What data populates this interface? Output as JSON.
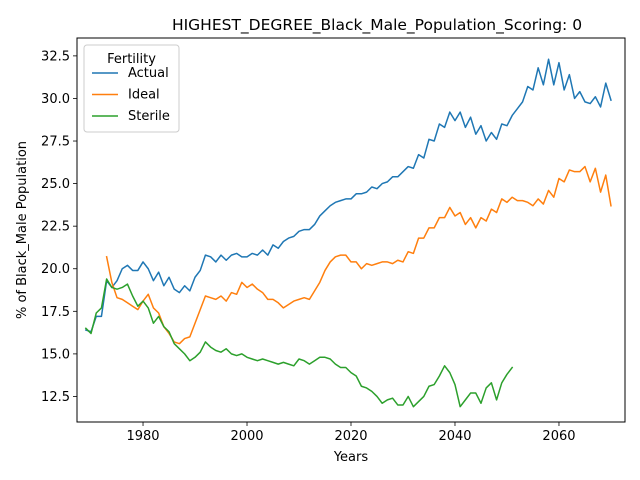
{
  "chart_data": {
    "type": "line",
    "title": "HIGHEST_DEGREE_Black_Male_Population_Scoring: 0",
    "xlabel": "Years",
    "ylabel": "% of Black_Male Population",
    "xlim": [
      1967.3,
      2072.7
    ],
    "ylim": [
      11.0,
      33.55
    ],
    "xticks": [
      1980,
      2000,
      2020,
      2040,
      2060
    ],
    "yticks": [
      12.5,
      15.0,
      17.5,
      20.0,
      22.5,
      25.0,
      27.5,
      30.0,
      32.5
    ],
    "xtick_labels": [
      "1980",
      "2000",
      "2020",
      "2040",
      "2060"
    ],
    "ytick_labels": [
      "12.5",
      "15.0",
      "17.5",
      "20.0",
      "22.5",
      "25.0",
      "27.5",
      "30.0",
      "32.5"
    ],
    "grid": false,
    "legend": {
      "title": "Fertility",
      "placement": "top-left"
    },
    "series": [
      {
        "name": "Actual",
        "color": "#1f77b4",
        "x": [
          1969,
          1970,
          1971,
          1972,
          1973,
          1974,
          1975,
          1976,
          1977,
          1978,
          1979,
          1980,
          1981,
          1982,
          1983,
          1984,
          1985,
          1986,
          1987,
          1988,
          1989,
          1990,
          1991,
          1992,
          1993,
          1994,
          1995,
          1996,
          1997,
          1998,
          1999,
          2000,
          2001,
          2002,
          2003,
          2004,
          2005,
          2006,
          2007,
          2008,
          2009,
          2010,
          2011,
          2012,
          2013,
          2014,
          2015,
          2016,
          2017,
          2018,
          2019,
          2020,
          2021,
          2022,
          2023,
          2024,
          2025,
          2026,
          2027,
          2028,
          2029,
          2030,
          2031,
          2032,
          2033,
          2034,
          2035,
          2036,
          2037,
          2038,
          2039,
          2040,
          2041,
          2042,
          2043,
          2044,
          2045,
          2046,
          2047,
          2048,
          2049,
          2050,
          2051,
          2052,
          2053,
          2054,
          2055,
          2056,
          2057,
          2058,
          2059,
          2060,
          2061,
          2062,
          2063,
          2064,
          2065,
          2066,
          2067,
          2068,
          2069,
          2070
        ],
        "y": [
          16.4,
          16.3,
          17.2,
          17.2,
          19.3,
          18.9,
          19.3,
          20.0,
          20.2,
          19.9,
          19.9,
          20.4,
          20.0,
          19.3,
          19.8,
          19.0,
          19.5,
          18.8,
          18.6,
          19.0,
          18.7,
          19.5,
          19.9,
          20.8,
          20.7,
          20.4,
          20.8,
          20.5,
          20.8,
          20.9,
          20.7,
          20.7,
          20.9,
          20.8,
          21.1,
          20.8,
          21.4,
          21.2,
          21.6,
          21.8,
          21.9,
          22.2,
          22.3,
          22.3,
          22.6,
          23.1,
          23.4,
          23.7,
          23.9,
          24.0,
          24.1,
          24.1,
          24.4,
          24.4,
          24.5,
          24.8,
          24.7,
          25.0,
          25.1,
          25.4,
          25.4,
          25.7,
          26.0,
          25.9,
          26.7,
          26.5,
          27.6,
          27.5,
          28.5,
          28.3,
          29.2,
          28.7,
          29.2,
          28.3,
          28.9,
          27.9,
          28.4,
          27.5,
          28.0,
          27.6,
          28.5,
          28.4,
          29.0,
          29.4,
          29.8,
          30.7,
          30.5,
          31.8,
          30.8,
          32.3,
          30.8,
          32.1,
          30.5,
          31.4,
          30.0,
          30.4,
          29.8,
          29.7,
          30.1,
          29.5,
          30.9,
          29.9
        ]
      },
      {
        "name": "Ideal",
        "color": "#ff7f0e",
        "x": [
          1973,
          1974,
          1975,
          1976,
          1977,
          1978,
          1979,
          1980,
          1981,
          1982,
          1983,
          1984,
          1985,
          1986,
          1987,
          1988,
          1989,
          1990,
          1991,
          1992,
          1993,
          1994,
          1995,
          1996,
          1997,
          1998,
          1999,
          2000,
          2001,
          2002,
          2003,
          2004,
          2005,
          2006,
          2007,
          2008,
          2009,
          2010,
          2011,
          2012,
          2013,
          2014,
          2015,
          2016,
          2017,
          2018,
          2019,
          2020,
          2021,
          2022,
          2023,
          2024,
          2025,
          2026,
          2027,
          2028,
          2029,
          2030,
          2031,
          2032,
          2033,
          2034,
          2035,
          2036,
          2037,
          2038,
          2039,
          2040,
          2041,
          2042,
          2043,
          2044,
          2045,
          2046,
          2047,
          2048,
          2049,
          2050,
          2051,
          2052,
          2053,
          2054,
          2055,
          2056,
          2057,
          2058,
          2059,
          2060,
          2061,
          2062,
          2063,
          2064,
          2065,
          2066,
          2067,
          2068,
          2069,
          2070
        ],
        "y": [
          20.7,
          19.2,
          18.3,
          18.2,
          18.0,
          17.8,
          17.6,
          18.1,
          18.5,
          17.7,
          17.4,
          16.6,
          16.2,
          15.7,
          15.6,
          15.9,
          16.0,
          16.8,
          17.6,
          18.4,
          18.3,
          18.2,
          18.4,
          18.1,
          18.6,
          18.5,
          19.2,
          18.9,
          19.1,
          18.8,
          18.6,
          18.2,
          18.2,
          18.0,
          17.7,
          17.9,
          18.1,
          18.2,
          18.3,
          18.2,
          18.7,
          19.2,
          19.9,
          20.4,
          20.7,
          20.8,
          20.8,
          20.4,
          20.4,
          20.0,
          20.3,
          20.2,
          20.3,
          20.4,
          20.4,
          20.3,
          20.5,
          20.4,
          21.0,
          20.9,
          21.8,
          21.8,
          22.4,
          22.4,
          23.0,
          23.0,
          23.6,
          23.1,
          23.3,
          22.6,
          23.0,
          22.4,
          23.0,
          22.8,
          23.5,
          23.3,
          24.1,
          23.9,
          24.2,
          24.0,
          24.0,
          23.9,
          23.7,
          24.1,
          23.8,
          24.6,
          24.2,
          25.3,
          25.1,
          25.8,
          25.7,
          25.7,
          26.0,
          25.1,
          25.9,
          24.5,
          25.5,
          23.7
        ]
      },
      {
        "name": "Sterile",
        "color": "#2ca02c",
        "x": [
          1969,
          1970,
          1971,
          1972,
          1973,
          1974,
          1975,
          1976,
          1977,
          1978,
          1979,
          1980,
          1981,
          1982,
          1983,
          1984,
          1985,
          1986,
          1987,
          1988,
          1989,
          1990,
          1991,
          1992,
          1993,
          1994,
          1995,
          1996,
          1997,
          1998,
          1999,
          2000,
          2001,
          2002,
          2003,
          2004,
          2005,
          2006,
          2007,
          2008,
          2009,
          2010,
          2011,
          2012,
          2013,
          2014,
          2015,
          2016,
          2017,
          2018,
          2019,
          2020,
          2021,
          2022,
          2023,
          2024,
          2025,
          2026,
          2027,
          2028,
          2029,
          2030,
          2031,
          2032,
          2033,
          2034,
          2035,
          2036,
          2037,
          2038,
          2039,
          2040,
          2041,
          2042,
          2043,
          2044,
          2045,
          2046,
          2047,
          2048,
          2049,
          2050,
          2051
        ],
        "y": [
          16.5,
          16.2,
          17.4,
          17.7,
          19.4,
          18.9,
          18.8,
          18.9,
          19.1,
          18.4,
          17.8,
          18.1,
          17.7,
          16.8,
          17.2,
          16.6,
          16.3,
          15.6,
          15.3,
          15.0,
          14.6,
          14.8,
          15.1,
          15.7,
          15.4,
          15.2,
          15.1,
          15.3,
          15.0,
          14.9,
          15.0,
          14.8,
          14.7,
          14.6,
          14.7,
          14.6,
          14.5,
          14.4,
          14.5,
          14.4,
          14.3,
          14.7,
          14.6,
          14.4,
          14.6,
          14.8,
          14.8,
          14.7,
          14.4,
          14.2,
          14.2,
          13.9,
          13.7,
          13.1,
          13.0,
          12.8,
          12.5,
          12.1,
          12.3,
          12.4,
          12.0,
          12.0,
          12.5,
          11.9,
          12.2,
          12.5,
          13.1,
          13.2,
          13.7,
          14.3,
          13.9,
          13.2,
          11.9,
          12.3,
          12.7,
          12.7,
          12.1,
          13.0,
          13.3,
          12.3,
          13.3,
          13.8,
          14.2
        ]
      }
    ]
  }
}
